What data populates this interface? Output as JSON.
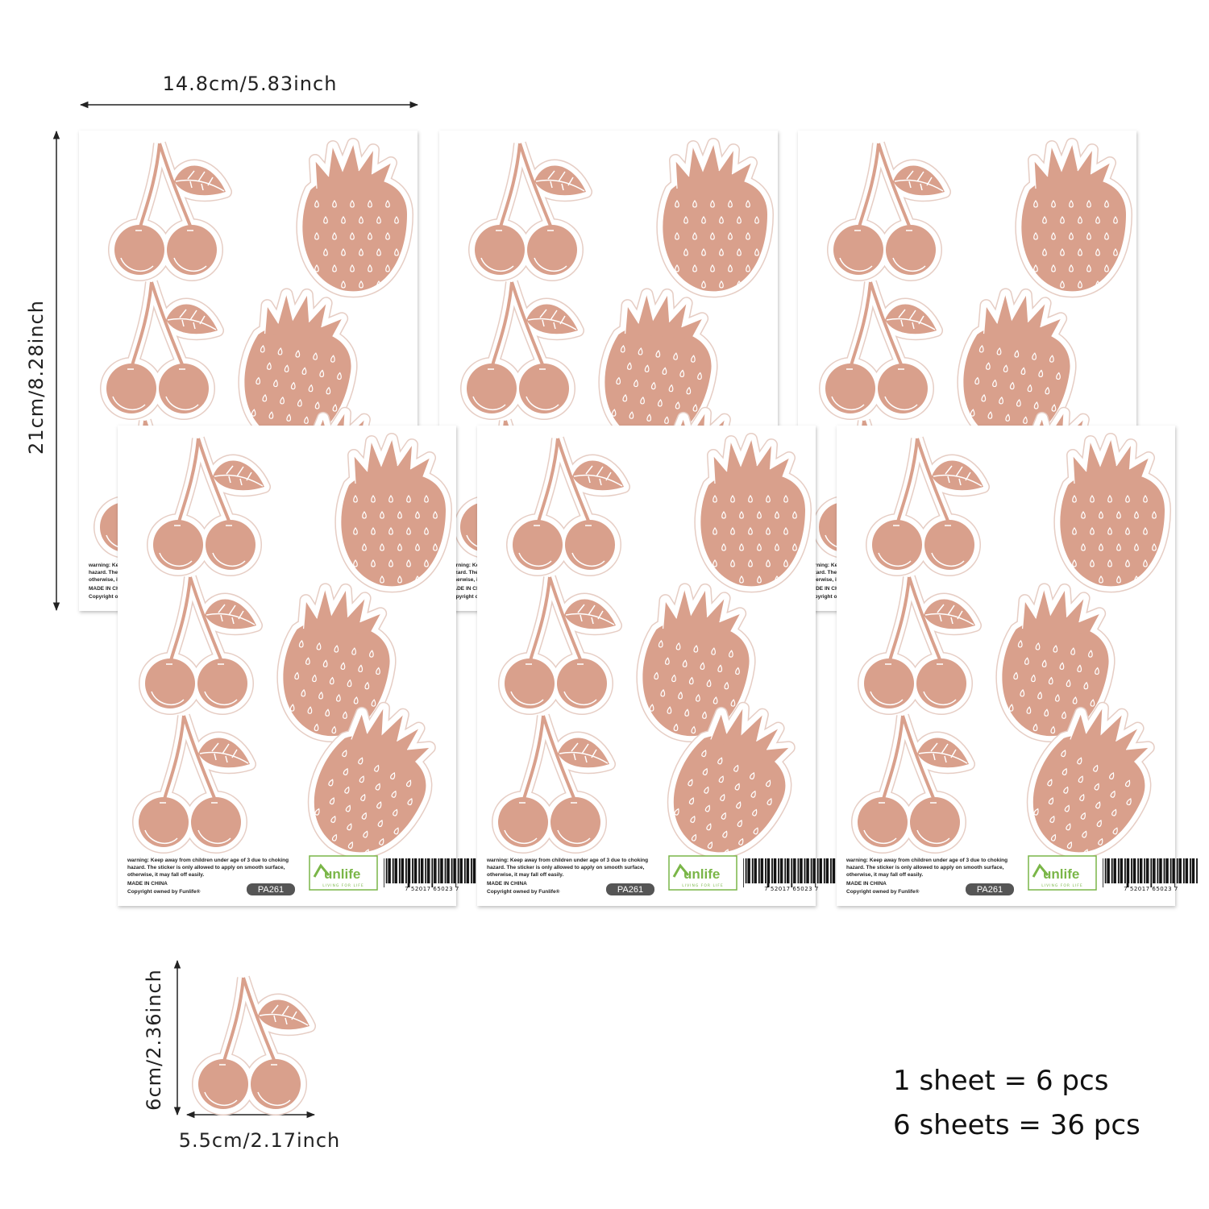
{
  "dimensions": {
    "sheet_width": "14.8cm/5.83inch",
    "sheet_height": "21cm/8.28inch",
    "sticker_height": "6cm/2.36inch",
    "sticker_width": "5.5cm/2.17inch"
  },
  "sheet": {
    "warning_lines": [
      "warning: Keep away from children under age of 3 due to choking",
      "hazard. The sticker is only allowed to apply on smooth surface,",
      "otherwise, it may fall off easily."
    ],
    "made_in": "MADE IN CHINA",
    "copyright": "Copyright owned by Funlife®",
    "code": "PA261",
    "brand": "unlife",
    "brand_tagline": "LIVING FOR LIFE",
    "barcode_digits": "7 52017 65023 7"
  },
  "summary": [
    "1 sheet = 6 pcs",
    "6 sheets = 36 pcs"
  ]
}
